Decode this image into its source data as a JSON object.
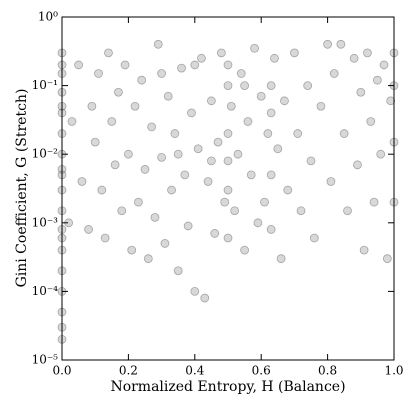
{
  "chart_data": {
    "type": "scatter",
    "x_label": "Normalized Entropy, H (Balance)",
    "y_label": "Gini Coefficient, G (Stretch)",
    "color": "#7f7f7f",
    "y_scale": "log",
    "xlim": [
      0,
      1
    ],
    "ylim": [
      1e-05,
      1
    ],
    "xticks": [
      {
        "value": 0,
        "label": "0.0"
      },
      0.2,
      0.4,
      0.6,
      0.8,
      {
        "value": 1,
        "label": "1.0"
      }
    ],
    "yticks": [
      {
        "value": 1e-05,
        "label": "10⁻⁵"
      },
      {
        "value": 0.0001,
        "label": "10⁻⁴"
      },
      {
        "value": 0.001,
        "label": "10⁻³"
      },
      {
        "value": 0.01,
        "label": "10⁻²"
      },
      {
        "value": 0.1,
        "label": "10⁻¹"
      },
      {
        "value": 1,
        "label": "10⁰"
      }
    ],
    "x": [
      0,
      0,
      0,
      0,
      0,
      0,
      0,
      0,
      0,
      0,
      0,
      0,
      0,
      0,
      0,
      0,
      0,
      0,
      0,
      0,
      0.02,
      0.03,
      0.05,
      0.06,
      0.08,
      0.09,
      0.1,
      0.11,
      0.12,
      0.13,
      0.14,
      0.15,
      0.16,
      0.17,
      0.18,
      0.19,
      0.2,
      0.21,
      0.22,
      0.23,
      0.24,
      0.25,
      0.26,
      0.27,
      0.28,
      0.29,
      0.3,
      0.31,
      0.32,
      0.33,
      0.34,
      0.35,
      0.36,
      0.37,
      0.38,
      0.39,
      0.4,
      0.41,
      0.42,
      0.43,
      0.44,
      0.45,
      0.46,
      0.47,
      0.48,
      0.49,
      0.5,
      0.5,
      0.5,
      0.5,
      0.5,
      0.5,
      0.51,
      0.52,
      0.53,
      0.54,
      0.55,
      0.56,
      0.57,
      0.58,
      0.59,
      0.6,
      0.61,
      0.62,
      0.63,
      0.63,
      0.63,
      0.63,
      0.64,
      0.65,
      0.66,
      0.67,
      0.68,
      0.7,
      0.71,
      0.72,
      0.74,
      0.75,
      0.76,
      0.78,
      0.8,
      0.81,
      0.82,
      0.84,
      0.85,
      0.86,
      0.88,
      0.89,
      0.9,
      0.91,
      0.92,
      0.93,
      0.94,
      0.95,
      0.96,
      0.97,
      0.98,
      0.99,
      1,
      1,
      1,
      1,
      0.35,
      0.45,
      0.4,
      0.55,
      0.3
    ],
    "y": [
      2e-05,
      5e-05,
      0.0001,
      0.0002,
      0.0004,
      0.0008,
      0.0015,
      0.003,
      0.006,
      0.01,
      0.02,
      0.04,
      0.08,
      0.15,
      0.3,
      3e-05,
      0.0006,
      0.05,
      0.2,
      0.005,
      0.001,
      0.03,
      0.2,
      0.004,
      0.0008,
      0.05,
      0.015,
      0.15,
      0.003,
      0.0006,
      0.3,
      0.03,
      0.007,
      0.08,
      0.0015,
      0.2,
      0.01,
      0.0004,
      0.05,
      0.002,
      0.12,
      0.006,
      0.0003,
      0.025,
      0.0012,
      0.4,
      0.009,
      0.0005,
      0.07,
      0.003,
      0.02,
      0.0002,
      0.18,
      0.005,
      0.0009,
      0.04,
      0.0001,
      0.012,
      0.25,
      8e-05,
      0.004,
      0.06,
      0.0007,
      0.015,
      0.3,
      0.002,
      0.1,
      0.02,
      0.003,
      0.0006,
      0.2,
      0.008,
      0.05,
      0.0015,
      0.01,
      0.15,
      0.0004,
      0.03,
      0.005,
      0.35,
      0.001,
      0.07,
      0.002,
      0.02,
      0.1,
      0.005,
      0.0008,
      0.04,
      0.25,
      0.012,
      0.0003,
      0.06,
      0.003,
      0.3,
      0.02,
      0.0015,
      0.1,
      0.008,
      0.0006,
      0.05,
      0.4,
      0.004,
      0.15,
      0.4,
      0.02,
      0.0015,
      0.25,
      0.007,
      0.08,
      0.0004,
      0.3,
      0.03,
      0.002,
      0.12,
      0.01,
      0.2,
      0.0003,
      0.06,
      0.3,
      0.1,
      0.015,
      0.002,
      0.01,
      0.008,
      0.2,
      0.1,
      0.15
    ]
  }
}
